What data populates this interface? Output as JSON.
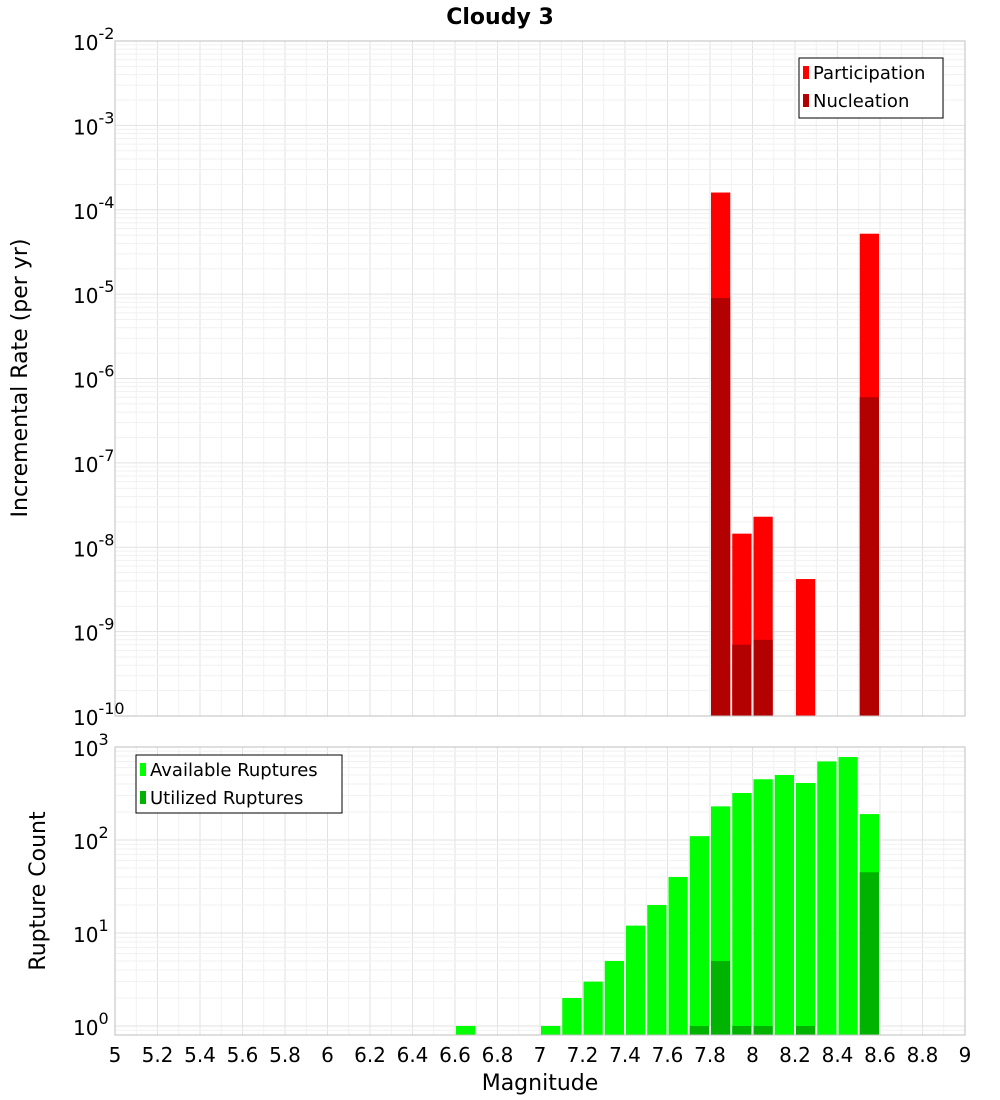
{
  "chart_data": [
    {
      "type": "bar",
      "title": "Cloudy 3",
      "xlabel": "",
      "ylabel": "Incremental Rate (per yr)",
      "yscale": "log",
      "xlim": [
        5,
        9
      ],
      "ylim": [
        1e-10,
        0.01
      ],
      "yticks": [
        {
          "base": "10",
          "exp": "-2"
        },
        {
          "base": "10",
          "exp": "-3"
        },
        {
          "base": "10",
          "exp": "-4"
        },
        {
          "base": "10",
          "exp": "-5"
        },
        {
          "base": "10",
          "exp": "-6"
        },
        {
          "base": "10",
          "exp": "-7"
        },
        {
          "base": "10",
          "exp": "-8"
        },
        {
          "base": "10",
          "exp": "-9"
        },
        {
          "base": "10",
          "exp": "-10"
        }
      ],
      "grid": true,
      "legend_position": "top-right",
      "bar_width": 0.1,
      "series": [
        {
          "name": "Participation",
          "color": "#ff0000",
          "x": [
            7.85,
            7.95,
            8.05,
            8.25,
            8.55
          ],
          "values": [
            0.00016,
            1.45e-08,
            2.3e-08,
            4.2e-09,
            5.2e-05
          ]
        },
        {
          "name": "Nucleation",
          "color": "#b30000",
          "x": [
            7.85,
            7.95,
            8.05,
            8.55
          ],
          "values": [
            9e-06,
            7e-10,
            8e-10,
            6e-07
          ]
        }
      ]
    },
    {
      "type": "bar",
      "title": "",
      "xlabel": "Magnitude",
      "ylabel": "Rupture Count",
      "yscale": "log",
      "xlim": [
        5,
        9
      ],
      "ylim": [
        0.8,
        1000
      ],
      "xticks": [
        "5",
        "5.2",
        "5.4",
        "5.6",
        "5.8",
        "6",
        "6.2",
        "6.4",
        "6.6",
        "6.8",
        "7",
        "7.2",
        "7.4",
        "7.6",
        "7.8",
        "8",
        "8.2",
        "8.4",
        "8.6",
        "8.8",
        "9"
      ],
      "yticks": [
        {
          "base": "10",
          "exp": "3"
        },
        {
          "base": "10",
          "exp": "2"
        },
        {
          "base": "10",
          "exp": "1"
        },
        {
          "base": "10",
          "exp": "0"
        }
      ],
      "grid": true,
      "legend_position": "top-left",
      "bar_width": 0.1,
      "series": [
        {
          "name": "Available Ruptures",
          "color": "#00ff00",
          "x": [
            6.65,
            7.05,
            7.15,
            7.25,
            7.35,
            7.45,
            7.55,
            7.65,
            7.75,
            7.85,
            7.95,
            8.05,
            8.15,
            8.25,
            8.35,
            8.45,
            8.55
          ],
          "values": [
            1,
            1,
            2,
            3,
            5,
            12,
            20,
            40,
            110,
            230,
            320,
            450,
            500,
            410,
            700,
            780,
            190
          ]
        },
        {
          "name": "Utilized Ruptures",
          "color": "#00b300",
          "x": [
            7.75,
            7.85,
            7.95,
            8.05,
            8.25,
            8.55
          ],
          "values": [
            1,
            5,
            1,
            1,
            1,
            45
          ]
        }
      ]
    }
  ]
}
